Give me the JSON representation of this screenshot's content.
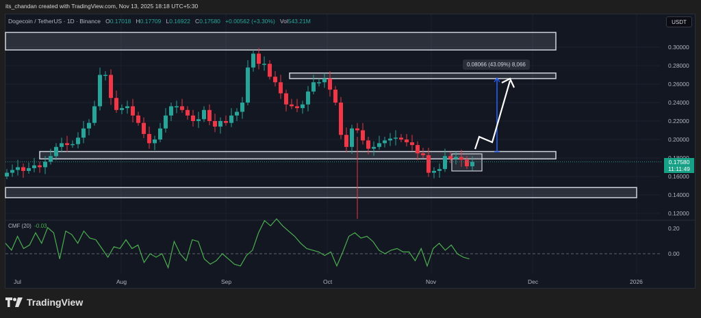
{
  "credit": "its_chandan created with TradingView.com, Nov 13, 2025 18:18 UTC+5:30",
  "legend": {
    "symbol": "Dogecoin / TetherUS · 1D · Binance",
    "open_label": "O",
    "open": "0.17018",
    "high_label": "H",
    "high": "0.17709",
    "low_label": "L",
    "low": "0.16922",
    "close_label": "C",
    "close": "0.17580",
    "change": "+0.00562 (+3.30%)",
    "vol_label": "Vol",
    "vol": "543.21M"
  },
  "currency_button": "USDT",
  "price_axis": [
    "0.30000",
    "0.28000",
    "0.26000",
    "0.24000",
    "0.22000",
    "0.20000",
    "0.18000",
    "0.16000",
    "0.14000",
    "0.12000"
  ],
  "price_tag": {
    "price": "0.17580",
    "countdown": "11:11:49"
  },
  "cmf": {
    "label": "CMF (20)",
    "value": "-0.03",
    "axis": [
      "0.20",
      "0.00"
    ]
  },
  "time_axis": [
    "Jul",
    "Aug",
    "Sep",
    "Oct",
    "Nov",
    "Dec",
    "2026"
  ],
  "measure_label": "0.08066 (43.09%) 8,066",
  "branding": "TradingView",
  "colors": {
    "up": "#26a69a",
    "down": "#f23645",
    "cmf": "#4caf50",
    "background": "#131722",
    "zone_border": "#d1d4dc"
  },
  "chart_data": {
    "type": "candlestick",
    "title": "Dogecoin / TetherUS · 1D · Binance",
    "xlabel": "",
    "ylabel": "USDT",
    "ylim": [
      0.11,
      0.32
    ],
    "x_ticks": [
      "Jul",
      "Aug",
      "Sep",
      "Oct",
      "Nov",
      "Dec",
      "2026"
    ],
    "last": {
      "open": 0.17018,
      "high": 0.17709,
      "low": 0.16922,
      "close": 0.1758
    },
    "zones": [
      {
        "from": 0.297,
        "to": 0.316
      },
      {
        "from": 0.266,
        "to": 0.272
      },
      {
        "from": 0.179,
        "to": 0.187
      },
      {
        "from": 0.137,
        "to": 0.148
      }
    ],
    "measure": {
      "from": 0.187,
      "to": 0.268,
      "delta": 0.08066,
      "percent": 43.09,
      "ticks": 8066
    },
    "series": [
      {
        "name": "close_approx",
        "values": [
          0.164,
          0.167,
          0.17,
          0.166,
          0.169,
          0.172,
          0.17,
          0.176,
          0.182,
          0.192,
          0.196,
          0.194,
          0.195,
          0.202,
          0.212,
          0.218,
          0.236,
          0.27,
          0.27,
          0.245,
          0.232,
          0.234,
          0.236,
          0.226,
          0.218,
          0.206,
          0.196,
          0.2,
          0.212,
          0.226,
          0.236,
          0.236,
          0.232,
          0.226,
          0.22,
          0.222,
          0.232,
          0.22,
          0.214,
          0.22,
          0.218,
          0.226,
          0.23,
          0.24,
          0.278,
          0.293,
          0.282,
          0.282,
          0.268,
          0.262,
          0.25,
          0.238,
          0.236,
          0.234,
          0.238,
          0.252,
          0.262,
          0.262,
          0.266,
          0.254,
          0.24,
          0.205,
          0.192,
          0.212,
          0.21,
          0.199,
          0.19,
          0.192,
          0.196,
          0.199,
          0.201,
          0.202,
          0.2,
          0.197,
          0.194,
          0.185,
          0.183,
          0.164,
          0.166,
          0.168,
          0.182,
          0.179,
          0.181,
          0.178,
          0.171,
          0.1758
        ]
      },
      {
        "name": "CMF (20)",
        "values": [
          0.06,
          0.02,
          0.1,
          0.03,
          0.05,
          0.12,
          0.06,
          0.15,
          0.12,
          -0.03,
          0.13,
          0.11,
          0.06,
          0.13,
          0.09,
          0.08,
          0.03,
          -0.02,
          0.04,
          0.03,
          0.08,
          0.03,
          0.05,
          -0.05,
          0.0,
          -0.02,
          0.0,
          -0.08,
          0.07,
          0.0,
          -0.04,
          0.08,
          0.07,
          -0.03,
          -0.06,
          -0.04,
          0.0,
          -0.03,
          -0.06,
          -0.07,
          -0.01,
          0.02,
          0.12,
          0.19,
          0.16,
          0.2,
          0.16,
          0.13,
          0.1,
          0.06,
          0.03,
          0.02,
          0.01,
          -0.01,
          0.01,
          -0.07,
          0.01,
          0.1,
          0.12,
          0.09,
          0.1,
          0.07,
          0.02,
          0.0,
          0.02,
          0.03,
          0.01,
          0.01,
          -0.04,
          0.03,
          -0.07,
          0.03,
          0.06,
          0.02,
          0.05,
          0.0,
          -0.02,
          -0.03
        ]
      }
    ]
  }
}
